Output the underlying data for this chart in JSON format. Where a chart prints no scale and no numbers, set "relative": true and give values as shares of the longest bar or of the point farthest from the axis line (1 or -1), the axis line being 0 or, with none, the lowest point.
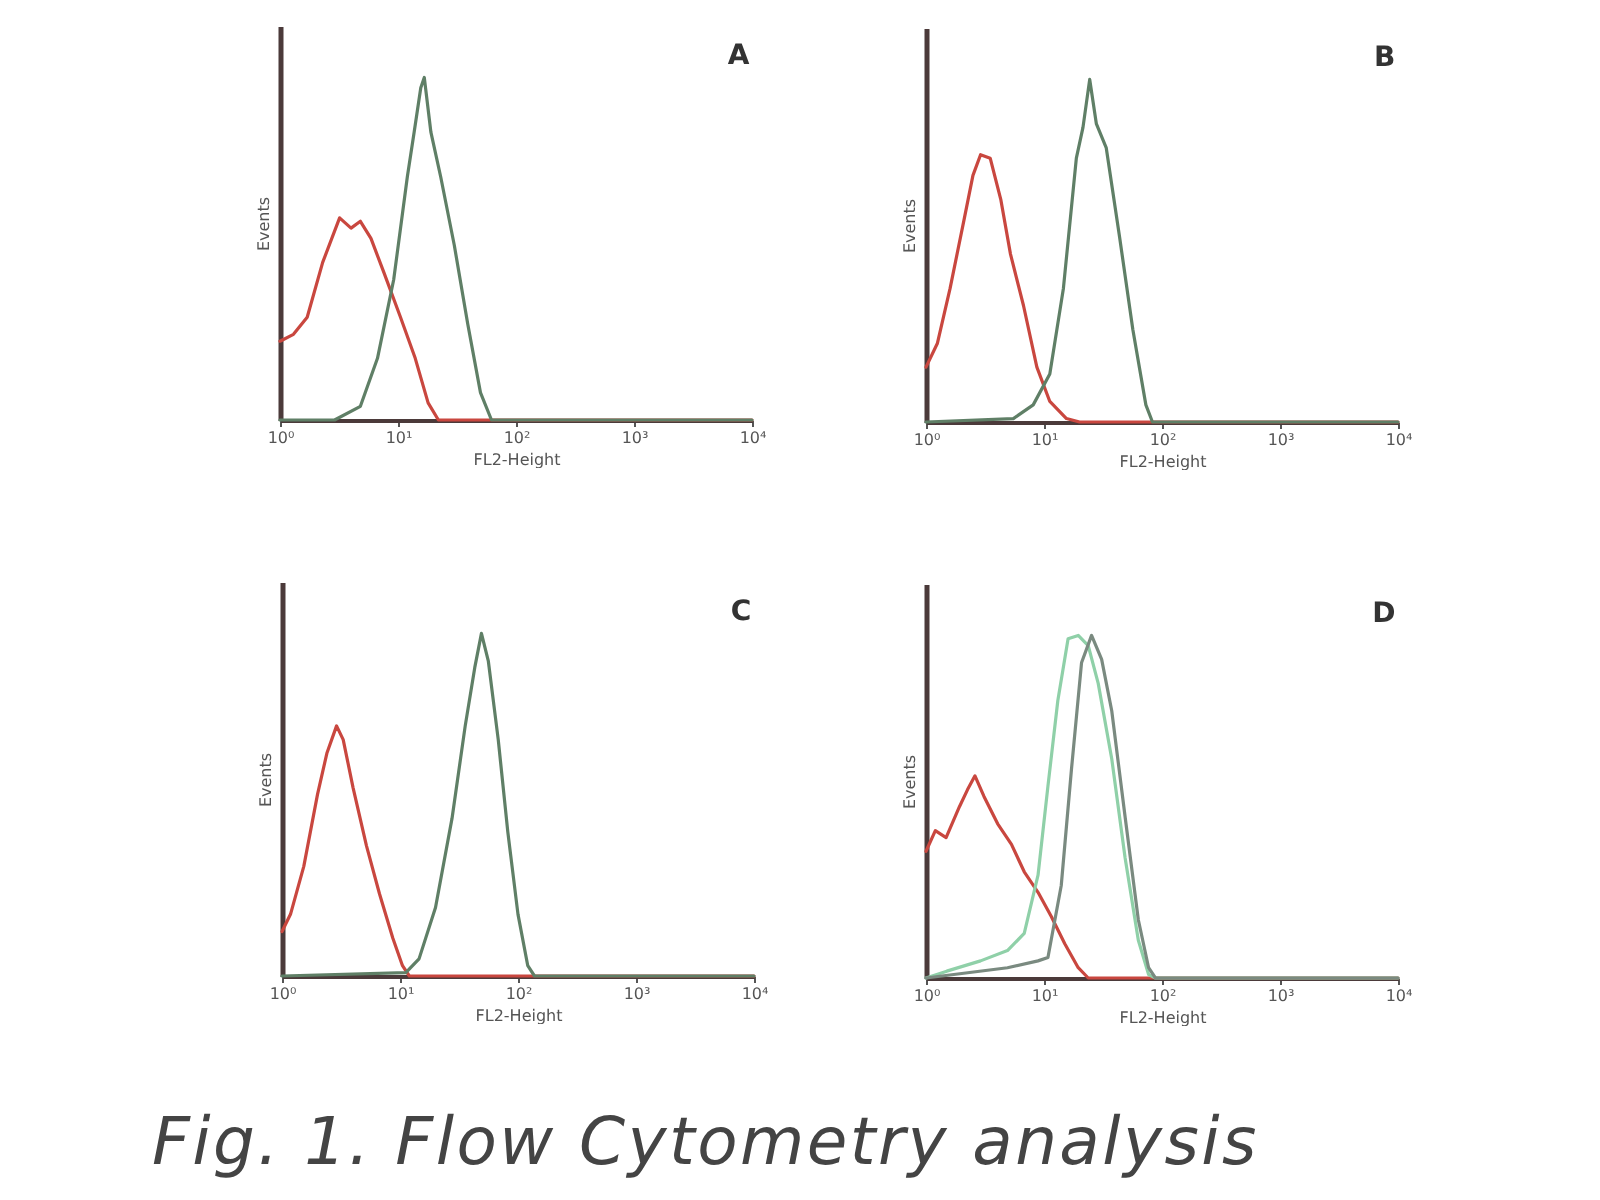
{
  "chart_data": [
    {
      "type": "line",
      "title": "A",
      "xlabel": "FL2-Height",
      "ylabel": "Events",
      "log": "x",
      "relative": true,
      "xlim": [
        1,
        10000
      ],
      "xticks": [
        {
          "value": 1,
          "label": "10⁰"
        },
        {
          "value": 10,
          "label": "10¹"
        },
        {
          "value": 100,
          "label": "10²"
        },
        {
          "value": 1000,
          "label": "10³"
        },
        {
          "value": 10000,
          "label": "10⁴"
        }
      ],
      "series": [
        {
          "color": "#c9473f",
          "x": [
            1,
            1.3,
            1.7,
            2.3,
            3.2,
            4,
            4.8,
            5.9,
            7.6,
            10.5,
            14,
            18,
            22,
            10000
          ],
          "values": [
            0.23,
            0.25,
            0.3,
            0.46,
            0.59,
            0.56,
            0.58,
            0.53,
            0.43,
            0.3,
            0.18,
            0.05,
            0,
            0
          ]
        },
        {
          "color": "#5f7f66",
          "x": [
            1,
            2.9,
            4.8,
            6.7,
            9.2,
            12,
            13.7,
            15.6,
            16.7,
            19,
            23,
            30,
            39,
            50,
            62,
            10000
          ],
          "values": [
            0,
            0,
            0.04,
            0.18,
            0.41,
            0.71,
            0.84,
            0.97,
            1,
            0.84,
            0.71,
            0.51,
            0.28,
            0.08,
            0,
            0
          ]
        }
      ]
    },
    {
      "type": "line",
      "title": "B",
      "xlabel": "FL2-Height",
      "ylabel": "Events",
      "log": "x",
      "relative": true,
      "xlim": [
        1,
        10000
      ],
      "xticks": [
        {
          "value": 1,
          "label": "10⁰"
        },
        {
          "value": 10,
          "label": "10¹"
        },
        {
          "value": 100,
          "label": "10²"
        },
        {
          "value": 1000,
          "label": "10³"
        },
        {
          "value": 10000,
          "label": "10⁴"
        }
      ],
      "series": [
        {
          "color": "#c9473f",
          "x": [
            1,
            1.25,
            1.6,
            2.1,
            2.5,
            2.9,
            3.5,
            4.3,
            5.2,
            6.7,
            8.7,
            11.2,
            15.5,
            20,
            10000
          ],
          "values": [
            0.16,
            0.23,
            0.39,
            0.59,
            0.72,
            0.78,
            0.77,
            0.65,
            0.49,
            0.34,
            0.16,
            0.06,
            0.01,
            0,
            0
          ]
        },
        {
          "color": "#5f7f66",
          "x": [
            1,
            5.5,
            8.1,
            11.2,
            14.6,
            18.8,
            21.4,
            24.4,
            27.8,
            33.7,
            43.7,
            56.6,
            73,
            83,
            10000
          ],
          "values": [
            0,
            0.01,
            0.05,
            0.14,
            0.39,
            0.77,
            0.86,
            1,
            0.87,
            0.8,
            0.54,
            0.27,
            0.05,
            0,
            0
          ]
        }
      ]
    },
    {
      "type": "line",
      "title": "C",
      "xlabel": "FL2-Height",
      "ylabel": "Events",
      "log": "x",
      "relative": true,
      "xlim": [
        1,
        10000
      ],
      "xticks": [
        {
          "value": 1,
          "label": "10⁰"
        },
        {
          "value": 10,
          "label": "10¹"
        },
        {
          "value": 100,
          "label": "10²"
        },
        {
          "value": 1000,
          "label": "10³"
        },
        {
          "value": 10000,
          "label": "10⁴"
        }
      ],
      "series": [
        {
          "color": "#c9473f",
          "x": [
            1,
            1.18,
            1.53,
            2,
            2.4,
            2.9,
            3.3,
            4,
            5.2,
            6.7,
            8.7,
            10.5,
            12,
            10000
          ],
          "values": [
            0.13,
            0.18,
            0.32,
            0.53,
            0.65,
            0.73,
            0.69,
            0.55,
            0.38,
            0.24,
            0.11,
            0.03,
            0,
            0
          ]
        },
        {
          "color": "#5f7f66",
          "x": [
            1,
            11.2,
            14.5,
            20,
            27.6,
            35.7,
            43,
            49,
            56,
            68,
            82,
            100,
            121,
            138,
            10000
          ],
          "values": [
            0,
            0.01,
            0.05,
            0.2,
            0.46,
            0.73,
            0.9,
            1,
            0.92,
            0.69,
            0.42,
            0.18,
            0.03,
            0,
            0
          ]
        }
      ]
    },
    {
      "type": "line",
      "title": "D",
      "xlabel": "FL2-Height",
      "ylabel": "Events",
      "log": "x",
      "relative": true,
      "xlim": [
        1,
        10000
      ],
      "xticks": [
        {
          "value": 1,
          "label": "10⁰"
        },
        {
          "value": 10,
          "label": "10¹"
        },
        {
          "value": 100,
          "label": "10²"
        },
        {
          "value": 1000,
          "label": "10³"
        },
        {
          "value": 10000,
          "label": "10⁴"
        }
      ],
      "annotations": [
        "Fig. 1. Flow Cytometry analysis"
      ],
      "series": [
        {
          "color": "#c9473f",
          "x": [
            1,
            1.2,
            1.48,
            1.92,
            2.25,
            2.6,
            3.1,
            4.05,
            5.3,
            6.8,
            8.9,
            11.5,
            15,
            19.5,
            23.7,
            10000
          ],
          "values": [
            0.37,
            0.43,
            0.41,
            0.5,
            0.55,
            0.59,
            0.53,
            0.45,
            0.39,
            0.31,
            0.25,
            0.18,
            0.1,
            0.03,
            0,
            0
          ]
        },
        {
          "color": "#8fd0a8",
          "x": [
            1,
            1.5,
            2.9,
            4.9,
            6.8,
            8.9,
            10.8,
            13.1,
            16,
            19.5,
            23.7,
            28.8,
            37.5,
            48.7,
            63,
            77,
            88,
            10000
          ],
          "values": [
            0,
            0.02,
            0.05,
            0.08,
            0.13,
            0.3,
            0.56,
            0.81,
            0.99,
            1,
            0.97,
            0.86,
            0.64,
            0.35,
            0.11,
            0.01,
            0,
            0
          ]
        },
        {
          "color": "#7a8a80",
          "x": [
            1,
            4.9,
            8.9,
            10.8,
            14,
            17.1,
            20.8,
            25.3,
            30.8,
            37.5,
            48.7,
            63,
            77,
            88,
            10000
          ],
          "values": [
            0,
            0.03,
            0.05,
            0.06,
            0.27,
            0.61,
            0.92,
            1,
            0.93,
            0.78,
            0.47,
            0.17,
            0.03,
            0,
            0
          ]
        }
      ]
    }
  ]
}
